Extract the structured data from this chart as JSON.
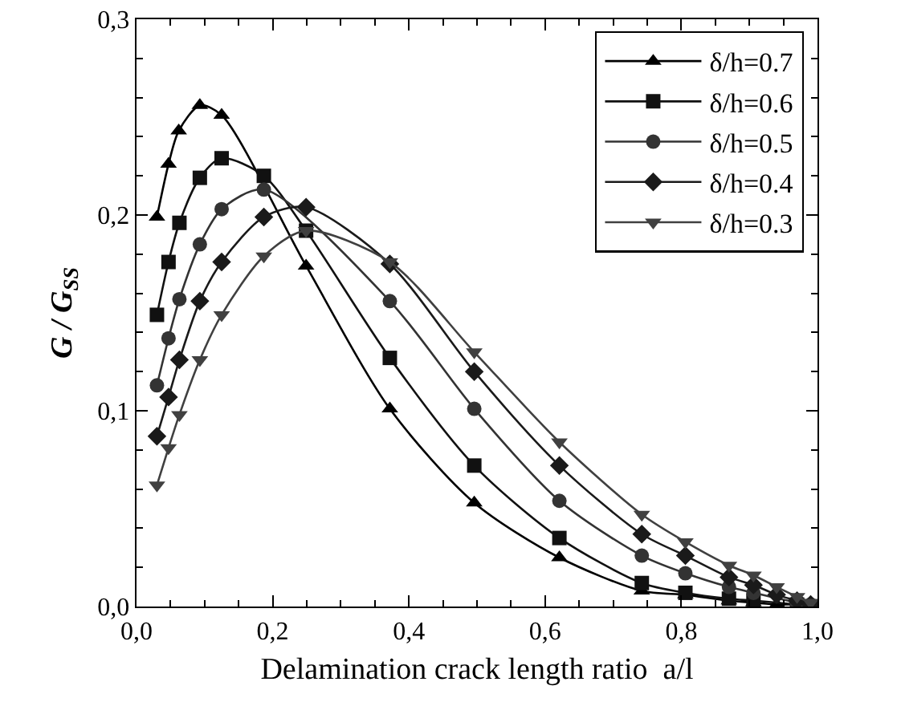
{
  "chart_data": {
    "type": "line",
    "xlabel": "Delamination crack length ratio  a/l",
    "ylabel": "G / G$_{SS}$",
    "xlim": [
      0,
      1
    ],
    "ylim": [
      0,
      0.3
    ],
    "xticks": [
      {
        "value": 0,
        "label": "0,0"
      },
      {
        "value": 0.2,
        "label": "0,2"
      },
      {
        "value": 0.4,
        "label": "0,4"
      },
      {
        "value": 0.6,
        "label": "0,6"
      },
      {
        "value": 0.8,
        "label": "0,8"
      },
      {
        "value": 1,
        "label": "1,0"
      }
    ],
    "yticks": [
      {
        "value": 0,
        "label": "0,0"
      },
      {
        "value": 0.1,
        "label": "0,1"
      },
      {
        "value": 0.2,
        "label": "0,2"
      },
      {
        "value": 0.3,
        "label": "0,3"
      }
    ],
    "grid": false,
    "legend": "top right",
    "line_style": "solid",
    "series": [
      {
        "name": "δ/h=0.7",
        "color": "#000000",
        "marker": "triangle",
        "x": [
          0.03,
          0.047,
          0.062,
          0.093,
          0.125,
          0.249,
          0.372,
          0.496,
          0.621,
          0.742,
          0.806,
          0.87,
          0.906,
          0.94,
          0.97,
          0.99
        ],
        "values": [
          0.199,
          0.226,
          0.243,
          0.256,
          0.251,
          0.174,
          0.101,
          0.053,
          0.025,
          0.008,
          0.006,
          0.003,
          0.002,
          0.001,
          0.001,
          0
        ]
      },
      {
        "name": "δ/h=0.6",
        "color": "#111111",
        "marker": "square",
        "x": [
          0.03,
          0.047,
          0.063,
          0.093,
          0.125,
          0.187,
          0.249,
          0.372,
          0.496,
          0.621,
          0.742,
          0.806,
          0.87,
          0.906,
          0.94,
          0.97,
          0.99
        ],
        "values": [
          0.149,
          0.176,
          0.196,
          0.219,
          0.229,
          0.22,
          0.192,
          0.127,
          0.072,
          0.035,
          0.012,
          0.007,
          0.004,
          0.003,
          null,
          0.001,
          0
        ]
      },
      {
        "name": "δ/h=0.5",
        "color": "#333333",
        "marker": "circle",
        "x": [
          0.03,
          0.047,
          0.063,
          0.093,
          0.125,
          0.187,
          0.249,
          0.372,
          0.496,
          0.621,
          0.742,
          0.806,
          0.87,
          0.906,
          0.94,
          0.97,
          0.99
        ],
        "values": [
          0.113,
          0.137,
          0.157,
          0.185,
          0.203,
          0.213,
          null,
          0.156,
          0.101,
          0.054,
          0.026,
          0.017,
          0.01,
          0.007,
          null,
          0.002,
          0.001
        ]
      },
      {
        "name": "δ/h=0.4",
        "color": "#1a1a1a",
        "marker": "diamond",
        "x": [
          0.03,
          0.047,
          0.063,
          0.093,
          0.125,
          0.187,
          0.249,
          0.372,
          0.496,
          0.621,
          0.742,
          0.806,
          0.87,
          0.906,
          0.94,
          0.97,
          0.99
        ],
        "values": [
          0.087,
          0.107,
          0.126,
          0.156,
          0.176,
          0.199,
          0.204,
          0.175,
          0.12,
          0.072,
          0.037,
          0.026,
          0.015,
          0.011,
          0.006,
          0.003,
          0.001
        ]
      },
      {
        "name": "δ/h=0.3",
        "color": "#404040",
        "marker": "triangle-down",
        "x": [
          0.03,
          0.047,
          0.063,
          0.093,
          0.125,
          0.187,
          0.249,
          0.372,
          0.496,
          0.621,
          0.742,
          0.806,
          0.87,
          0.906,
          0.94,
          0.97,
          0.99
        ],
        "values": [
          0.062,
          0.081,
          0.098,
          0.126,
          0.149,
          0.179,
          0.192,
          0.176,
          0.13,
          0.084,
          0.047,
          0.033,
          0.021,
          0.016,
          0.01,
          0.005,
          0.002
        ]
      }
    ]
  }
}
